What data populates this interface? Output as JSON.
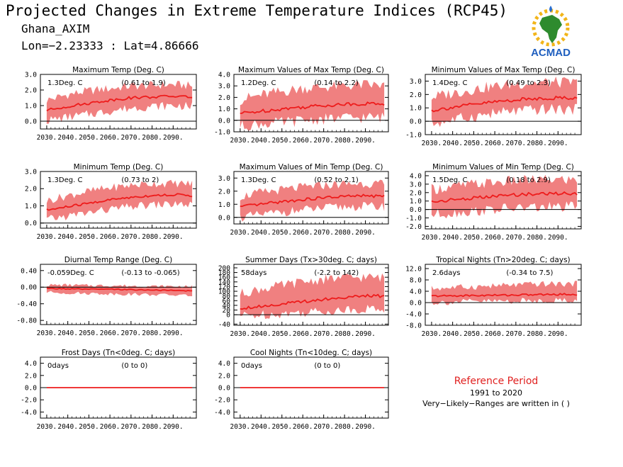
{
  "header": {
    "title": "Projected Changes in Extreme Temperature Indices (RCP45)",
    "region": "Ghana_AXIM",
    "coords": "Lon=−2.23333 : Lat=4.86666"
  },
  "logo": {
    "text": "ACMAD"
  },
  "reference": {
    "title": "Reference Period",
    "years": "1991 to 2020",
    "note": "Very−Likely−Ranges are written in ( )"
  },
  "colors": {
    "line": "#ee1c1c",
    "band": "#f08080",
    "zero": "#000000"
  },
  "chart_data": [
    {
      "type": "area",
      "title": "Maximum Temp (Deg. C)",
      "mean_label": "1.3Deg. C",
      "range_label": "(0.61 to 1.9)",
      "x": [
        2030,
        2040,
        2050,
        2060,
        2070,
        2080,
        2090,
        2100
      ],
      "mean": [
        0.7,
        0.95,
        1.15,
        1.35,
        1.5,
        1.55,
        1.6,
        1.55
      ],
      "lower": [
        0.05,
        0.25,
        0.45,
        0.65,
        0.85,
        0.95,
        1.0,
        0.95
      ],
      "upper": [
        1.35,
        1.7,
        1.95,
        2.1,
        2.25,
        2.3,
        2.35,
        2.25
      ],
      "ylim": [
        -0.5,
        3.0
      ],
      "yticks": [
        0,
        1,
        2,
        3
      ],
      "ytick_labels": [
        "0.0",
        "1.0",
        "2.0",
        "3.0"
      ],
      "xtick_labels": [
        "2030.",
        "2040.",
        "2050.",
        "2060.",
        "2070.",
        "2080.",
        "2090."
      ]
    },
    {
      "type": "area",
      "title": "Maximum Values of Max Temp (Deg. C)",
      "mean_label": "1.2Deg. C",
      "range_label": "(0.14 to 2.2)",
      "x": [
        2030,
        2040,
        2050,
        2060,
        2070,
        2080,
        2090,
        2100
      ],
      "mean": [
        0.6,
        0.8,
        1.0,
        1.15,
        1.3,
        1.4,
        1.45,
        1.45
      ],
      "lower": [
        -0.5,
        -0.3,
        -0.2,
        0.0,
        0.1,
        0.2,
        0.25,
        0.25
      ],
      "upper": [
        1.8,
        2.2,
        2.5,
        2.8,
        2.9,
        3.0,
        3.1,
        3.0
      ],
      "ylim": [
        -1.0,
        4.0
      ],
      "yticks": [
        -1,
        0,
        1,
        2,
        3,
        4
      ],
      "ytick_labels": [
        "-1.0",
        "0.0",
        "1.0",
        "2.0",
        "3.0",
        "4.0"
      ],
      "xtick_labels": [
        "2030.",
        "2040.",
        "2050.",
        "2060.",
        "2070.",
        "2080.",
        "2090."
      ]
    },
    {
      "type": "area",
      "title": "Minimum Values of Max Temp (Deg. C)",
      "mean_label": "1.4Deg. C",
      "range_label": "(0.49 to 2.3)",
      "x": [
        2030,
        2040,
        2050,
        2060,
        2070,
        2080,
        2090,
        2100
      ],
      "mean": [
        0.8,
        1.05,
        1.25,
        1.45,
        1.6,
        1.7,
        1.75,
        1.75
      ],
      "lower": [
        -0.2,
        0.1,
        0.35,
        0.6,
        0.75,
        0.85,
        0.9,
        0.85
      ],
      "upper": [
        1.8,
        2.1,
        2.4,
        2.6,
        2.8,
        2.9,
        2.9,
        2.85
      ],
      "ylim": [
        -1.0,
        3.5
      ],
      "yticks": [
        -1,
        0,
        1,
        2,
        3
      ],
      "ytick_labels": [
        "-1.0",
        "0.0",
        "1.0",
        "2.0",
        "3.0"
      ],
      "xtick_labels": [
        "2030.",
        "2040.",
        "2050.",
        "2060.",
        "2070.",
        "2080.",
        "2090."
      ]
    },
    {
      "type": "area",
      "title": "Minimum Temp (Deg. C)",
      "mean_label": "1.3Deg. C",
      "range_label": "(0.73 to 2)",
      "x": [
        2030,
        2040,
        2050,
        2060,
        2070,
        2080,
        2090,
        2100
      ],
      "mean": [
        0.75,
        0.95,
        1.15,
        1.35,
        1.5,
        1.6,
        1.65,
        1.6
      ],
      "lower": [
        0.2,
        0.4,
        0.6,
        0.8,
        0.95,
        1.05,
        1.1,
        1.05
      ],
      "upper": [
        1.3,
        1.6,
        1.85,
        2.05,
        2.2,
        2.3,
        2.3,
        2.3
      ],
      "ylim": [
        -0.3,
        3.0
      ],
      "yticks": [
        0,
        1,
        2,
        3
      ],
      "ytick_labels": [
        "0.0",
        "1.0",
        "2.0",
        "3.0"
      ],
      "xtick_labels": [
        "2030.",
        "2040.",
        "2050.",
        "2060.",
        "2070.",
        "2080.",
        "2090."
      ]
    },
    {
      "type": "area",
      "title": "Maximum Values of Min Temp (Deg. C)",
      "mean_label": "1.3Deg. C",
      "range_label": "(0.52 to 2.1)",
      "x": [
        2030,
        2040,
        2050,
        2060,
        2070,
        2080,
        2090,
        2100
      ],
      "mean": [
        0.8,
        1.0,
        1.2,
        1.35,
        1.5,
        1.6,
        1.65,
        1.6
      ],
      "lower": [
        0.0,
        0.2,
        0.4,
        0.55,
        0.7,
        0.8,
        0.85,
        0.8
      ],
      "upper": [
        1.6,
        1.9,
        2.1,
        2.3,
        2.45,
        2.55,
        2.6,
        2.5
      ],
      "ylim": [
        -0.5,
        3.5
      ],
      "yticks": [
        0,
        1,
        2,
        3
      ],
      "ytick_labels": [
        "0.0",
        "1.0",
        "2.0",
        "3.0"
      ],
      "xtick_labels": [
        "2030.",
        "2040.",
        "2050.",
        "2060.",
        "2070.",
        "2080.",
        "2090."
      ]
    },
    {
      "type": "area",
      "title": "Minimum Values of Min Temp (Deg. C)",
      "mean_label": "1.5Deg. C",
      "range_label": "(0.18 to 2.9)",
      "x": [
        2030,
        2040,
        2050,
        2060,
        2070,
        2080,
        2090,
        2100
      ],
      "mean": [
        0.9,
        1.15,
        1.35,
        1.55,
        1.75,
        1.85,
        1.9,
        1.9
      ],
      "lower": [
        -0.6,
        -0.4,
        -0.2,
        0.0,
        0.15,
        0.25,
        0.3,
        0.3
      ],
      "upper": [
        2.4,
        2.7,
        3.0,
        3.2,
        3.4,
        3.5,
        3.55,
        3.5
      ],
      "ylim": [
        -2.3,
        4.5
      ],
      "yticks": [
        -2,
        -1,
        0,
        1,
        2,
        3,
        4
      ],
      "ytick_labels": [
        "-2.0",
        "-1.0",
        "0.0",
        "1.0",
        "2.0",
        "3.0",
        "4.0"
      ],
      "xtick_labels": [
        "2030.",
        "2040.",
        "2050.",
        "2060.",
        "2070.",
        "2080.",
        "2090."
      ]
    },
    {
      "type": "area",
      "title": "Diurnal Temp Range (Deg. C)",
      "mean_label": "-0.059Deg. C",
      "range_label": "(-0.13 to -0.065)",
      "x": [
        2030,
        2040,
        2050,
        2060,
        2070,
        2080,
        2090,
        2100
      ],
      "mean": [
        -0.03,
        -0.04,
        -0.05,
        -0.05,
        -0.06,
        -0.07,
        -0.08,
        -0.09
      ],
      "lower": [
        -0.12,
        -0.14,
        -0.15,
        -0.16,
        -0.17,
        -0.18,
        -0.19,
        -0.2
      ],
      "upper": [
        0.05,
        0.05,
        0.04,
        0.04,
        0.03,
        0.02,
        0.02,
        0.01
      ],
      "ylim": [
        -0.9,
        0.55
      ],
      "yticks": [
        -0.8,
        -0.4,
        0,
        0.4
      ],
      "ytick_labels": [
        "-0.80",
        "-0.40",
        "0.00",
        "0.40"
      ],
      "xtick_labels": [
        "2030.",
        "2040.",
        "2050.",
        "2060.",
        "2070.",
        "2080.",
        "2090."
      ]
    },
    {
      "type": "area",
      "title": "Summer Days (Tx>30deg. C; days)",
      "mean_label": "58days",
      "range_label": "(-2.2 to 142)",
      "x": [
        2030,
        2040,
        2050,
        2060,
        2070,
        2080,
        2090,
        2100
      ],
      "mean": [
        28,
        36,
        46,
        56,
        66,
        74,
        80,
        80
      ],
      "lower": [
        -5,
        0,
        5,
        10,
        15,
        20,
        25,
        25
      ],
      "upper": [
        90,
        110,
        125,
        140,
        150,
        158,
        160,
        158
      ],
      "ylim": [
        -45,
        215
      ],
      "yticks": [
        -40,
        0,
        20,
        40,
        60,
        80,
        100,
        120,
        140,
        160,
        180,
        200
      ],
      "ytick_labels": [
        "-40",
        "0",
        "20",
        "40",
        "60",
        "80",
        "100",
        "120",
        "140",
        "160",
        "180",
        "200"
      ],
      "xtick_labels": [
        "2030.",
        "2040.",
        "2050.",
        "2060.",
        "2070.",
        "2080.",
        "2090."
      ]
    },
    {
      "type": "area",
      "title": "Tropical Nights (Tn>20deg. C; days)",
      "mean_label": "2.6days",
      "range_label": "(-0.34 to 7.5)",
      "x": [
        2030,
        2040,
        2050,
        2060,
        2070,
        2080,
        2090,
        2100
      ],
      "mean": [
        2.3,
        2.4,
        2.5,
        2.6,
        2.7,
        2.8,
        2.9,
        2.9
      ],
      "lower": [
        0.0,
        0.2,
        0.4,
        0.5,
        0.6,
        0.7,
        0.8,
        0.8
      ],
      "upper": [
        5.0,
        5.3,
        5.6,
        5.9,
        6.2,
        6.5,
        6.6,
        6.6
      ],
      "ylim": [
        -8.0,
        13.5
      ],
      "yticks": [
        -8,
        -4,
        0,
        4,
        8,
        12
      ],
      "ytick_labels": [
        "-8.0",
        "-4.0",
        "0.0",
        "4.0",
        "8.0",
        "12.0"
      ],
      "xtick_labels": [
        "2030.",
        "2040.",
        "2050.",
        "2060.",
        "2070.",
        "2080.",
        "2090."
      ]
    },
    {
      "type": "area",
      "title": "Frost Days (Tn<0deg. C; days)",
      "mean_label": "0days",
      "range_label": "(0 to 0)",
      "x": [
        2030,
        2100
      ],
      "mean": [
        0,
        0
      ],
      "lower": [
        0,
        0
      ],
      "upper": [
        0,
        0
      ],
      "ylim": [
        -5.0,
        5.0
      ],
      "yticks": [
        -4,
        -2,
        0,
        2,
        4
      ],
      "ytick_labels": [
        "-4.0",
        "-2.0",
        "0.0",
        "2.0",
        "4.0"
      ],
      "xtick_labels": [
        "2030.",
        "2040.",
        "2050.",
        "2060.",
        "2070.",
        "2080.",
        "2090."
      ]
    },
    {
      "type": "area",
      "title": "Cool Nights (Tn<10deg. C; days)",
      "mean_label": "0days",
      "range_label": "(0 to 0)",
      "x": [
        2030,
        2100
      ],
      "mean": [
        0,
        0
      ],
      "lower": [
        0,
        0
      ],
      "upper": [
        0,
        0
      ],
      "ylim": [
        -5.0,
        5.0
      ],
      "yticks": [
        -4,
        -2,
        0,
        2,
        4
      ],
      "ytick_labels": [
        "-4.0",
        "-2.0",
        "0.0",
        "2.0",
        "4.0"
      ],
      "xtick_labels": [
        "2030.",
        "2040.",
        "2050.",
        "2060.",
        "2070.",
        "2080.",
        "2090."
      ]
    }
  ]
}
